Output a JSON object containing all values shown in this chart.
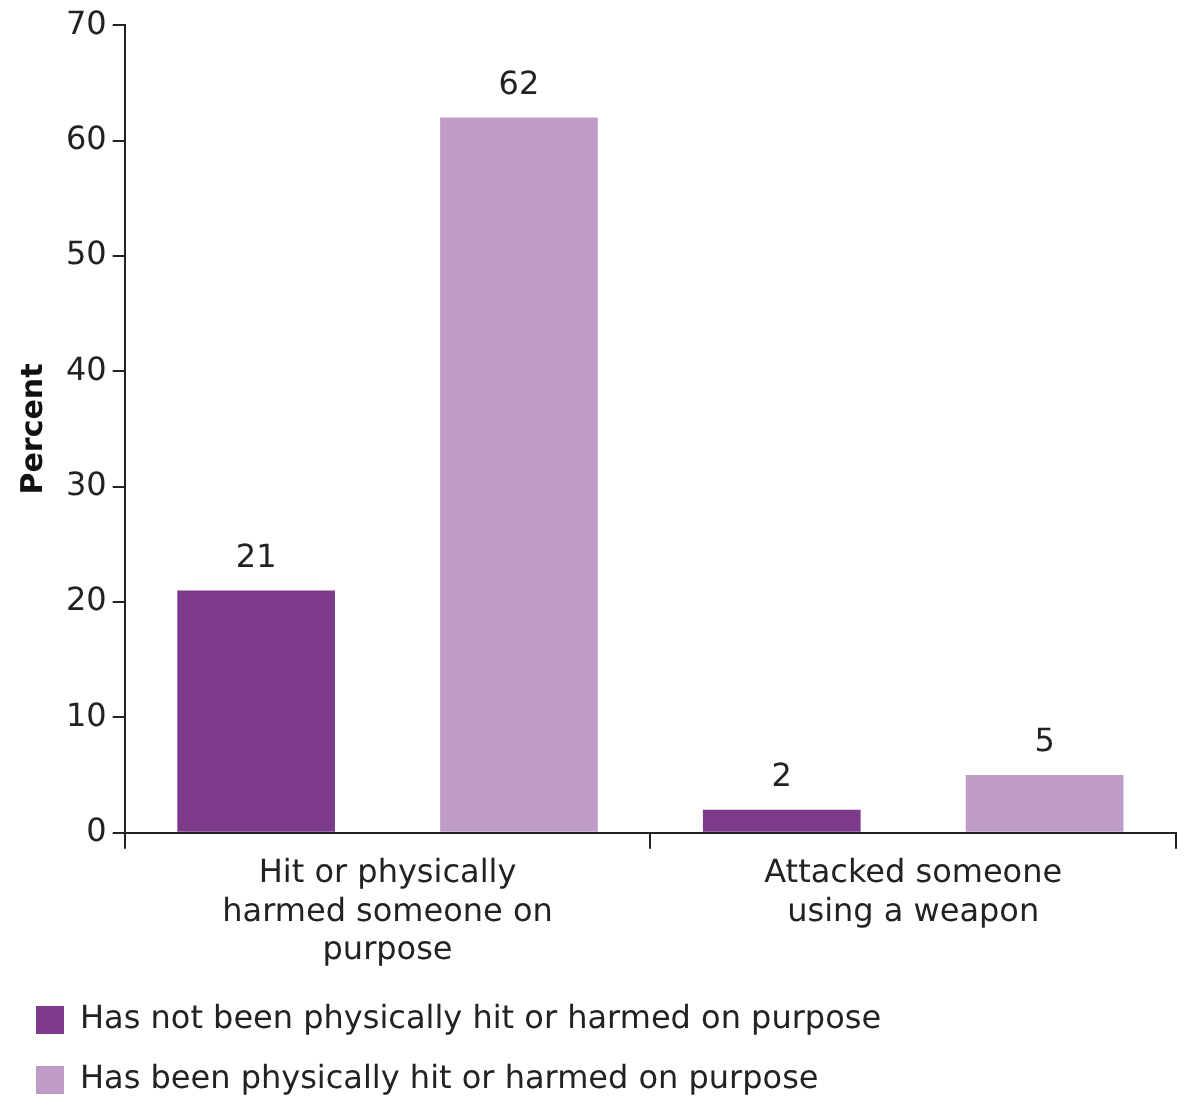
{
  "chart_data": {
    "type": "bar",
    "ylabel": "Percent",
    "categories": [
      "Hit or physically harmed someone on purpose",
      "Attacked someone using a weapon"
    ],
    "series": [
      {
        "name": "Has not been physically hit or harmed on purpose",
        "color": "#7d3a8a",
        "values": [
          21,
          2
        ]
      },
      {
        "name": "Has been physically hit or harmed on purpose",
        "color": "#bf9cc8",
        "values": [
          62,
          5
        ]
      }
    ],
    "ylim": [
      0,
      70
    ],
    "yticks": [
      0,
      10,
      20,
      30,
      40,
      50,
      60,
      70
    ],
    "grid": false,
    "legend": "bottom",
    "data_labels": true
  }
}
